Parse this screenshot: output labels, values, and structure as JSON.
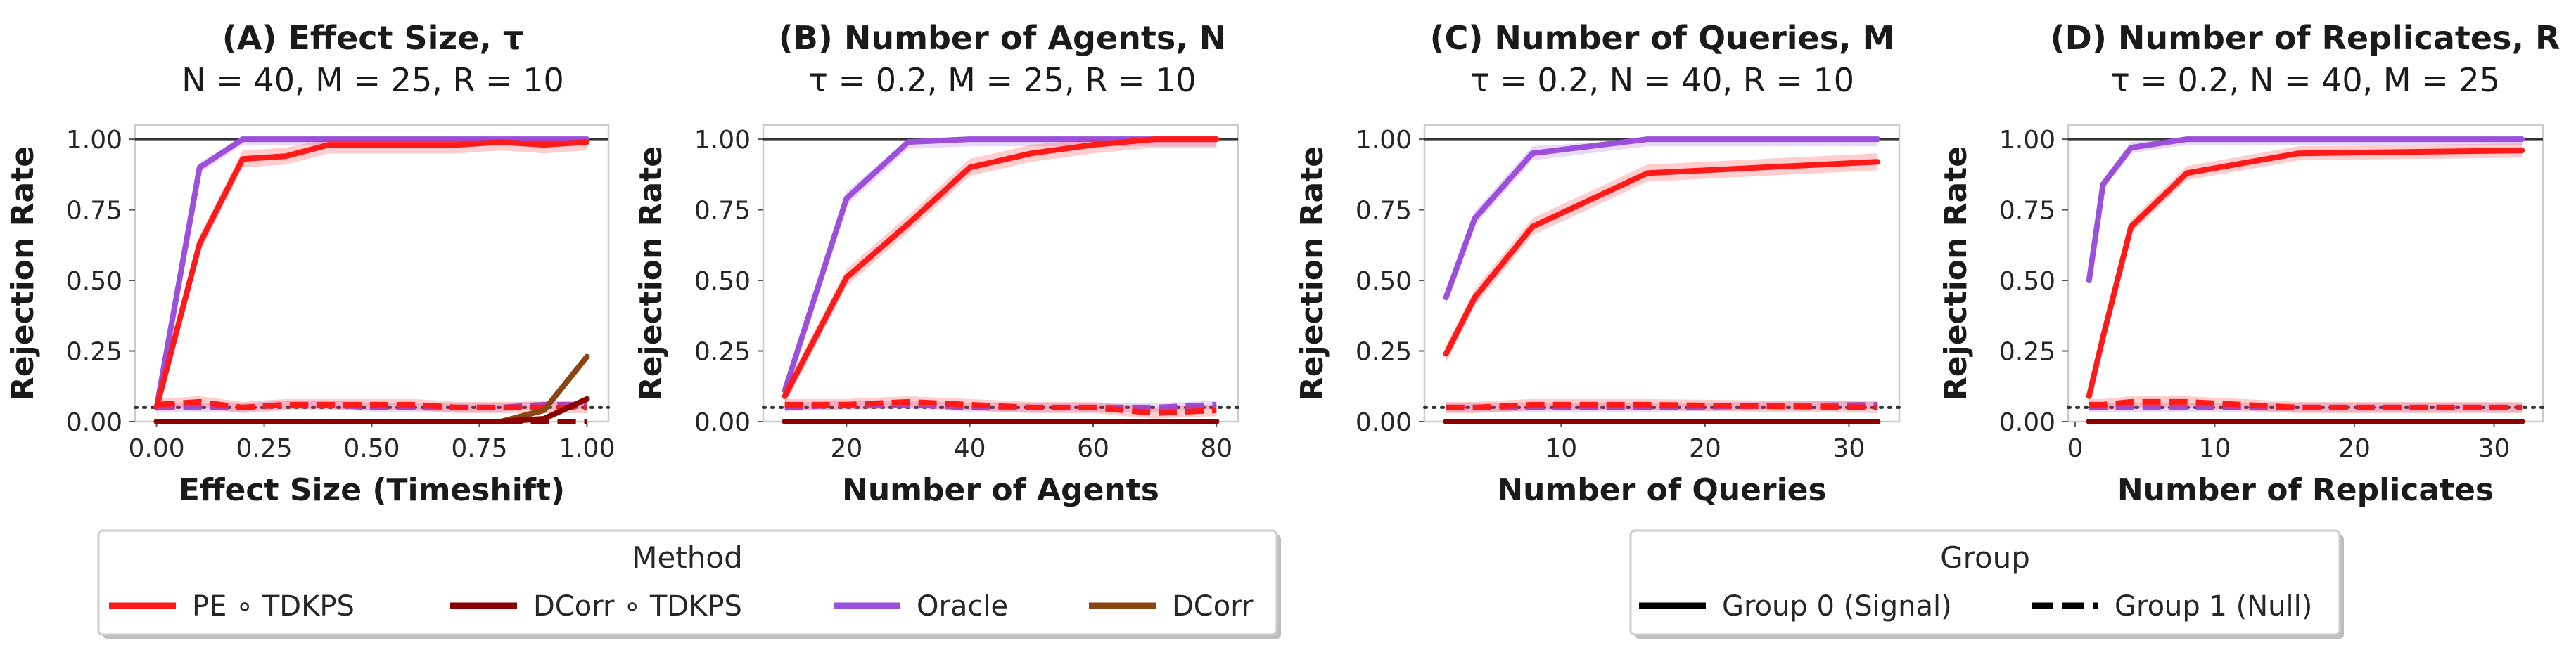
{
  "colors": {
    "pe_tdkps": "#ff1a1a",
    "dcorr_tdkps": "#8b0000",
    "oracle": "#9b4fdb",
    "dcorr": "#8b4513",
    "reference_line": "#333333"
  },
  "legends": {
    "method": {
      "title": "Method",
      "entries": [
        {
          "label": "PE ∘ TDKPS",
          "color": "#ff1a1a"
        },
        {
          "label": "DCorr ∘ TDKPS",
          "color": "#8b0000"
        },
        {
          "label": "Oracle",
          "color": "#9b4fdb"
        },
        {
          "label": "DCorr",
          "color": "#8b4513"
        }
      ]
    },
    "group": {
      "title": "Group",
      "entries": [
        {
          "label": "Group 0 (Signal)",
          "style": "solid"
        },
        {
          "label": "Group 1 (Null)",
          "style": "dashed"
        }
      ]
    }
  },
  "chart_data": [
    {
      "type": "line",
      "title": "(A) Effect Size, τ",
      "subtitle": "N = 40, M = 25, R = 10",
      "xlabel": "Effect Size (Timeshift)",
      "ylabel": "Rejection Rate",
      "xlim": [
        -0.05,
        1.05
      ],
      "ylim": [
        0,
        1.05
      ],
      "xticks": [
        0,
        0.25,
        0.5,
        0.75,
        1.0
      ],
      "xtick_labels": [
        "0.00",
        "0.25",
        "0.50",
        "0.75",
        "1.00"
      ],
      "yticks": [
        0,
        0.25,
        0.5,
        0.75,
        1.0
      ],
      "ytick_labels": [
        "0.00",
        "0.25",
        "0.50",
        "0.75",
        "1.00"
      ],
      "hline_solid": 1.0,
      "hline_dotted": 0.05,
      "series": [
        {
          "name": "Oracle",
          "group": "Group 0 (Signal)",
          "color_key": "oracle",
          "dash": "solid",
          "x": [
            0,
            0.1,
            0.2,
            0.3,
            0.4,
            0.5,
            0.6,
            0.7,
            0.8,
            0.9,
            1.0
          ],
          "y": [
            0.05,
            0.9,
            1.0,
            1.0,
            1.0,
            1.0,
            1.0,
            1.0,
            1.0,
            1.0,
            1.0
          ],
          "band": 0.02
        },
        {
          "name": "PE ∘ TDKPS",
          "group": "Group 0 (Signal)",
          "color_key": "pe_tdkps",
          "dash": "solid",
          "x": [
            0,
            0.1,
            0.2,
            0.3,
            0.4,
            0.5,
            0.6,
            0.7,
            0.8,
            0.9,
            1.0
          ],
          "y": [
            0.05,
            0.63,
            0.93,
            0.94,
            0.98,
            0.98,
            0.98,
            0.98,
            0.99,
            0.98,
            0.99
          ],
          "band": 0.03
        },
        {
          "name": "Oracle",
          "group": "Group 1 (Null)",
          "color_key": "oracle",
          "dash": "dashed",
          "x": [
            0,
            0.1,
            0.2,
            0.3,
            0.4,
            0.5,
            0.6,
            0.7,
            0.8,
            0.9,
            1.0
          ],
          "y": [
            0.05,
            0.05,
            0.05,
            0.06,
            0.06,
            0.05,
            0.05,
            0.05,
            0.05,
            0.06,
            0.06
          ],
          "band": 0.015
        },
        {
          "name": "PE ∘ TDKPS",
          "group": "Group 1 (Null)",
          "color_key": "pe_tdkps",
          "dash": "dashed",
          "x": [
            0,
            0.1,
            0.2,
            0.3,
            0.4,
            0.5,
            0.6,
            0.7,
            0.8,
            0.9,
            1.0
          ],
          "y": [
            0.06,
            0.07,
            0.05,
            0.06,
            0.06,
            0.06,
            0.06,
            0.05,
            0.05,
            0.05,
            0.05
          ],
          "band": 0.02
        },
        {
          "name": "DCorr",
          "group": "Group 0 (Signal)",
          "color_key": "dcorr",
          "dash": "solid",
          "x": [
            0,
            0.1,
            0.2,
            0.3,
            0.4,
            0.5,
            0.6,
            0.7,
            0.8,
            0.9,
            1.0
          ],
          "y": [
            0,
            0,
            0,
            0,
            0,
            0,
            0,
            0,
            0,
            0.04,
            0.23
          ],
          "band": 0.01
        },
        {
          "name": "DCorr ∘ TDKPS",
          "group": "Group 0 (Signal)",
          "color_key": "dcorr_tdkps",
          "dash": "solid",
          "x": [
            0,
            0.1,
            0.2,
            0.3,
            0.4,
            0.5,
            0.6,
            0.7,
            0.8,
            0.9,
            1.0
          ],
          "y": [
            0,
            0,
            0,
            0,
            0,
            0,
            0,
            0,
            0,
            0.01,
            0.08
          ],
          "band": 0.005
        },
        {
          "name": "DCorr",
          "group": "Group 1 (Null)",
          "color_key": "dcorr",
          "dash": "dashed",
          "x": [
            0,
            0.2,
            0.4,
            0.6,
            0.8,
            1.0
          ],
          "y": [
            0,
            0,
            0,
            0,
            0,
            0
          ],
          "band": 0
        },
        {
          "name": "DCorr ∘ TDKPS",
          "group": "Group 1 (Null)",
          "color_key": "dcorr_tdkps",
          "dash": "dashed",
          "x": [
            0,
            0.2,
            0.4,
            0.6,
            0.8,
            1.0
          ],
          "y": [
            0,
            0,
            0,
            0,
            0,
            0
          ],
          "band": 0
        }
      ]
    },
    {
      "type": "line",
      "title": "(B) Number of Agents, N",
      "subtitle": "τ = 0.2, M = 25, R = 10",
      "xlabel": "Number of Agents",
      "ylabel": "Rejection Rate",
      "xlim": [
        6.5,
        83.5
      ],
      "ylim": [
        0,
        1.05
      ],
      "xticks": [
        20,
        40,
        60,
        80
      ],
      "xtick_labels": [
        "20",
        "40",
        "60",
        "80"
      ],
      "yticks": [
        0,
        0.25,
        0.5,
        0.75,
        1.0
      ],
      "ytick_labels": [
        "0.00",
        "0.25",
        "0.50",
        "0.75",
        "1.00"
      ],
      "hline_solid": 1.0,
      "hline_dotted": 0.05,
      "series": [
        {
          "name": "Oracle",
          "group": "Group 0 (Signal)",
          "color_key": "oracle",
          "dash": "solid",
          "x": [
            10,
            20,
            30,
            40,
            50,
            60,
            70,
            80
          ],
          "y": [
            0.11,
            0.79,
            0.99,
            1.0,
            1.0,
            1.0,
            1.0,
            1.0
          ],
          "band": 0.025
        },
        {
          "name": "PE ∘ TDKPS",
          "group": "Group 0 (Signal)",
          "color_key": "pe_tdkps",
          "dash": "solid",
          "x": [
            10,
            20,
            30,
            40,
            50,
            60,
            70,
            80
          ],
          "y": [
            0.09,
            0.51,
            0.7,
            0.9,
            0.95,
            0.98,
            1.0,
            1.0
          ],
          "band": 0.03
        },
        {
          "name": "Oracle",
          "group": "Group 1 (Null)",
          "color_key": "oracle",
          "dash": "dashed",
          "x": [
            10,
            20,
            30,
            40,
            50,
            60,
            70,
            80
          ],
          "y": [
            0.05,
            0.06,
            0.06,
            0.05,
            0.05,
            0.05,
            0.05,
            0.06
          ],
          "band": 0.015
        },
        {
          "name": "PE ∘ TDKPS",
          "group": "Group 1 (Null)",
          "color_key": "pe_tdkps",
          "dash": "dashed",
          "x": [
            10,
            20,
            30,
            40,
            50,
            60,
            70,
            80
          ],
          "y": [
            0.06,
            0.06,
            0.07,
            0.06,
            0.05,
            0.05,
            0.03,
            0.04
          ],
          "band": 0.02
        },
        {
          "name": "DCorr",
          "group": "Group 0 (Signal)",
          "color_key": "dcorr",
          "dash": "solid",
          "x": [
            10,
            20,
            30,
            40,
            50,
            60,
            70,
            80
          ],
          "y": [
            0,
            0,
            0,
            0,
            0,
            0,
            0,
            0
          ],
          "band": 0
        },
        {
          "name": "DCorr ∘ TDKPS",
          "group": "Group 0 (Signal)",
          "color_key": "dcorr_tdkps",
          "dash": "solid",
          "x": [
            10,
            20,
            30,
            40,
            50,
            60,
            70,
            80
          ],
          "y": [
            0,
            0,
            0,
            0,
            0,
            0,
            0,
            0
          ],
          "band": 0
        }
      ]
    },
    {
      "type": "line",
      "title": "(C) Number of Queries, M",
      "subtitle": "τ = 0.2, N = 40, R = 10",
      "xlabel": "Number of Queries",
      "ylabel": "Rejection Rate",
      "xlim": [
        0.5,
        33.5
      ],
      "ylim": [
        0,
        1.05
      ],
      "xticks": [
        10,
        20,
        30
      ],
      "xtick_labels": [
        "10",
        "20",
        "30"
      ],
      "yticks": [
        0,
        0.25,
        0.5,
        0.75,
        1.0
      ],
      "ytick_labels": [
        "0.00",
        "0.25",
        "0.50",
        "0.75",
        "1.00"
      ],
      "hline_solid": 1.0,
      "hline_dotted": 0.05,
      "series": [
        {
          "name": "Oracle",
          "group": "Group 0 (Signal)",
          "color_key": "oracle",
          "dash": "solid",
          "x": [
            2,
            4,
            8,
            16,
            32
          ],
          "y": [
            0.44,
            0.72,
            0.95,
            1.0,
            1.0
          ],
          "band": 0.025
        },
        {
          "name": "PE ∘ TDKPS",
          "group": "Group 0 (Signal)",
          "color_key": "pe_tdkps",
          "dash": "solid",
          "x": [
            2,
            4,
            8,
            16,
            32
          ],
          "y": [
            0.24,
            0.44,
            0.69,
            0.88,
            0.92
          ],
          "band": 0.03
        },
        {
          "name": "Oracle",
          "group": "Group 1 (Null)",
          "color_key": "oracle",
          "dash": "dashed",
          "x": [
            2,
            4,
            8,
            16,
            32
          ],
          "y": [
            0.05,
            0.05,
            0.05,
            0.05,
            0.06
          ],
          "band": 0.015
        },
        {
          "name": "PE ∘ TDKPS",
          "group": "Group 1 (Null)",
          "color_key": "pe_tdkps",
          "dash": "dashed",
          "x": [
            2,
            4,
            8,
            16,
            32
          ],
          "y": [
            0.05,
            0.05,
            0.06,
            0.06,
            0.05
          ],
          "band": 0.02
        },
        {
          "name": "DCorr",
          "group": "Group 0 (Signal)",
          "color_key": "dcorr",
          "dash": "solid",
          "x": [
            2,
            4,
            8,
            16,
            32
          ],
          "y": [
            0,
            0,
            0,
            0,
            0
          ],
          "band": 0
        },
        {
          "name": "DCorr ∘ TDKPS",
          "group": "Group 0 (Signal)",
          "color_key": "dcorr_tdkps",
          "dash": "solid",
          "x": [
            2,
            4,
            8,
            16,
            32
          ],
          "y": [
            0,
            0,
            0,
            0,
            0
          ],
          "band": 0
        }
      ]
    },
    {
      "type": "line",
      "title": "(D) Number of Replicates, R",
      "subtitle": "τ = 0.2, N = 40, M = 25",
      "xlabel": "Number of Replicates",
      "ylabel": "Rejection Rate",
      "xlim": [
        -0.5,
        33.5
      ],
      "ylim": [
        0,
        1.05
      ],
      "xticks": [
        0,
        10,
        20,
        30
      ],
      "xtick_labels": [
        "0",
        "10",
        "20",
        "30"
      ],
      "yticks": [
        0,
        0.25,
        0.5,
        0.75,
        1.0
      ],
      "ytick_labels": [
        "0.00",
        "0.25",
        "0.50",
        "0.75",
        "1.00"
      ],
      "hline_solid": 1.0,
      "hline_dotted": 0.05,
      "series": [
        {
          "name": "Oracle",
          "group": "Group 0 (Signal)",
          "color_key": "oracle",
          "dash": "solid",
          "x": [
            1,
            2,
            4,
            8,
            16,
            32
          ],
          "y": [
            0.5,
            0.84,
            0.97,
            1.0,
            1.0,
            1.0
          ],
          "band": 0.02
        },
        {
          "name": "PE ∘ TDKPS",
          "group": "Group 0 (Signal)",
          "color_key": "pe_tdkps",
          "dash": "solid",
          "x": [
            1,
            2,
            4,
            8,
            16,
            32
          ],
          "y": [
            0.09,
            0.3,
            0.69,
            0.88,
            0.95,
            0.96
          ],
          "band": 0.025
        },
        {
          "name": "Oracle",
          "group": "Group 1 (Null)",
          "color_key": "oracle",
          "dash": "dashed",
          "x": [
            1,
            2,
            4,
            8,
            16,
            32
          ],
          "y": [
            0.05,
            0.05,
            0.05,
            0.05,
            0.05,
            0.05
          ],
          "band": 0.015
        },
        {
          "name": "PE ∘ TDKPS",
          "group": "Group 1 (Null)",
          "color_key": "pe_tdkps",
          "dash": "dashed",
          "x": [
            1,
            2,
            4,
            8,
            16,
            32
          ],
          "y": [
            0.06,
            0.06,
            0.07,
            0.07,
            0.05,
            0.05
          ],
          "band": 0.02
        },
        {
          "name": "DCorr",
          "group": "Group 0 (Signal)",
          "color_key": "dcorr",
          "dash": "solid",
          "x": [
            1,
            2,
            4,
            8,
            16,
            32
          ],
          "y": [
            0,
            0,
            0,
            0,
            0,
            0
          ],
          "band": 0
        },
        {
          "name": "DCorr ∘ TDKPS",
          "group": "Group 0 (Signal)",
          "color_key": "dcorr_tdkps",
          "dash": "solid",
          "x": [
            1,
            2,
            4,
            8,
            16,
            32
          ],
          "y": [
            0,
            0,
            0,
            0,
            0,
            0
          ],
          "band": 0
        }
      ]
    }
  ]
}
